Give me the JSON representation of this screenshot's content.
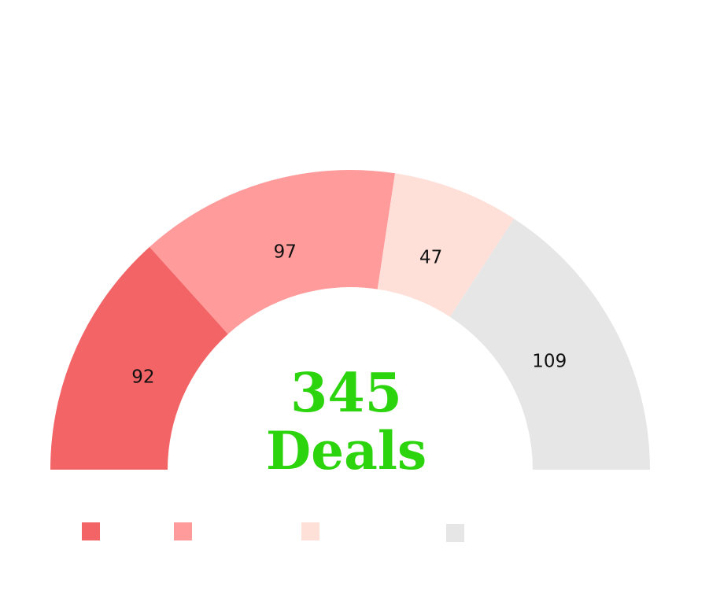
{
  "chart_data": {
    "type": "pie",
    "style": "semi-donut",
    "categories": [
      "",
      "",
      "",
      ""
    ],
    "values": [
      92,
      97,
      47,
      109
    ],
    "colors": [
      "#f26466",
      "#ff9b9b",
      "#ffe0d9",
      "#e6e6e6"
    ],
    "center": {
      "value": "345",
      "label": "Deals",
      "color": "#2bd40c"
    },
    "legend": {
      "placement": "bottom-left"
    }
  }
}
